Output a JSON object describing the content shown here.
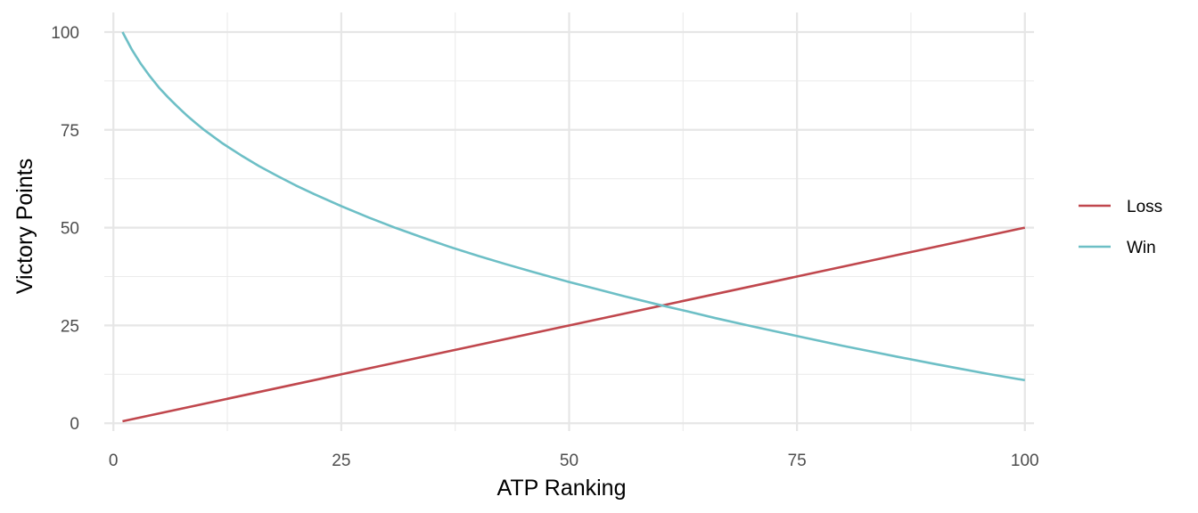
{
  "chart_data": {
    "type": "line",
    "xlabel": "ATP Ranking",
    "ylabel": "Victory Points",
    "xlim": [
      -1,
      101
    ],
    "ylim": [
      -2,
      105
    ],
    "x_ticks": [
      0,
      25,
      50,
      75,
      100
    ],
    "y_ticks": [
      0,
      25,
      50,
      75,
      100
    ],
    "x_minor": [
      12.5,
      37.5,
      62.5,
      87.5
    ],
    "y_minor": [
      12.5,
      37.5,
      62.5,
      87.5
    ],
    "grid": true,
    "legend_position": "right",
    "series": [
      {
        "name": "Loss",
        "color": "#c0474d",
        "x": [
          1,
          100
        ],
        "y": [
          0.5,
          50
        ]
      },
      {
        "name": "Win",
        "color": "#6dbfc6",
        "x": [
          1,
          2,
          3,
          4,
          5,
          6,
          7,
          8,
          9,
          10,
          12,
          14,
          16,
          18,
          20,
          22,
          25,
          28,
          31,
          34,
          37,
          40,
          43,
          46,
          50,
          53,
          56,
          60,
          63,
          66,
          70,
          73,
          76,
          80,
          83,
          86,
          90,
          93,
          96,
          100
        ],
        "y": [
          100,
          95.6,
          91.9,
          88.7,
          85.8,
          83.3,
          81,
          78.8,
          76.8,
          74.9,
          71.5,
          68.5,
          65.7,
          63.2,
          60.8,
          58.6,
          55.5,
          52.6,
          49.9,
          47.4,
          45,
          42.8,
          40.7,
          38.7,
          36.1,
          34.3,
          32.5,
          30.2,
          28.6,
          26.9,
          24.8,
          23.3,
          21.8,
          19.8,
          18.4,
          17,
          15.2,
          13.9,
          12.6,
          11
        ]
      }
    ]
  }
}
